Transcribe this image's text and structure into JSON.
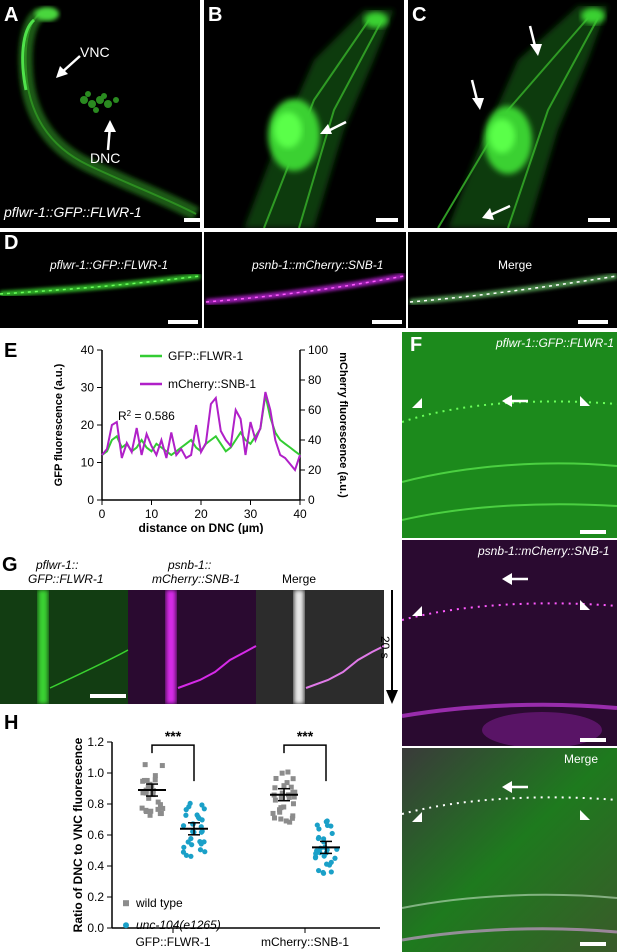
{
  "panels": {
    "A": {
      "letter": "A",
      "labels": {
        "vnc": "VNC",
        "dnc": "DNC",
        "construct": "pflwr-1::GFP::FLWR-1"
      }
    },
    "B": {
      "letter": "B"
    },
    "C": {
      "letter": "C"
    },
    "D": {
      "letter": "D",
      "labels": [
        "pflwr-1::GFP::FLWR-1",
        "psnb-1::mCherry::SNB-1",
        "Merge"
      ]
    },
    "E": {
      "letter": "E"
    },
    "F": {
      "letter": "F",
      "labels": [
        "pflwr-1::GFP::FLWR-1",
        "psnb-1::mCherry::SNB-1",
        "Merge"
      ]
    },
    "G": {
      "letter": "G",
      "labels": {
        "gfp_line1": "pflwr-1::",
        "gfp_line2": "GFP::FLWR-1",
        "mch_line1": "psnb-1::",
        "mch_line2": "mCherry::SNB-1",
        "merge": "Merge",
        "time": "20 s"
      }
    },
    "H": {
      "letter": "H"
    }
  },
  "colors": {
    "gfp": "#33cc33",
    "mcherry": "#b020c8",
    "wild_type": "#8c8c8c",
    "mutant": "#1aa0c8"
  },
  "chart_data": [
    {
      "type": "line",
      "panel": "E",
      "xlabel": "distance on DNC (µm)",
      "ylabel_left": "GFP fluorescence (a.u.)",
      "ylabel_right": "mCherry fluorescence (a.u.)",
      "xlim": [
        0,
        40
      ],
      "ylim_left": [
        0,
        40
      ],
      "ylim_right": [
        0,
        100
      ],
      "xticks": [
        0,
        10,
        20,
        30,
        40
      ],
      "yticks_left": [
        0,
        10,
        20,
        30,
        40
      ],
      "yticks_right": [
        0,
        20,
        40,
        60,
        80,
        100
      ],
      "annotation": {
        "r2_prefix": "R",
        "r2_sup": "2",
        "r2_rest": " = 0.586"
      },
      "legend_placement": "top",
      "series": [
        {
          "name": "GFP::FLWR-1",
          "axis": "left",
          "color": "#33cc33",
          "x": [
            0,
            1,
            2,
            3,
            4,
            5,
            6,
            7,
            8,
            9,
            10,
            11,
            12,
            13,
            14,
            15,
            16,
            17,
            18,
            19,
            20,
            21,
            22,
            23,
            24,
            25,
            26,
            27,
            28,
            29,
            30,
            31,
            32,
            33,
            34,
            35,
            36,
            37,
            38,
            39,
            40
          ],
          "y": [
            12,
            13,
            16,
            17,
            14,
            15,
            13,
            14,
            16,
            14,
            13,
            15,
            14,
            13,
            12,
            13,
            14,
            15,
            16,
            14,
            13,
            15,
            16,
            17,
            15,
            13,
            14,
            16,
            18,
            16,
            15,
            17,
            19,
            28,
            22,
            18,
            16,
            15,
            14,
            13,
            12
          ]
        },
        {
          "name": "mCherry::SNB-1",
          "axis": "right",
          "color": "#b020c8",
          "x": [
            0,
            1,
            2,
            3,
            4,
            5,
            6,
            7,
            8,
            9,
            10,
            11,
            12,
            13,
            14,
            15,
            16,
            17,
            18,
            19,
            20,
            21,
            22,
            23,
            24,
            25,
            26,
            27,
            28,
            29,
            30,
            31,
            32,
            33,
            34,
            35,
            36,
            37,
            38,
            39,
            40
          ],
          "y": [
            30,
            34,
            50,
            52,
            28,
            38,
            32,
            48,
            30,
            44,
            36,
            30,
            40,
            28,
            45,
            30,
            34,
            28,
            30,
            50,
            32,
            38,
            64,
            68,
            46,
            40,
            36,
            60,
            54,
            30,
            52,
            40,
            48,
            72,
            60,
            40,
            30,
            28,
            24,
            20,
            30
          ]
        }
      ]
    },
    {
      "type": "scatter",
      "panel": "H",
      "ylabel": "Ratio of DNC to VNC fluorescence",
      "categories": [
        "GFP::FLWR-1",
        "mCherry::SNB-1"
      ],
      "ylim": [
        0,
        1.2
      ],
      "yticks": [
        0.0,
        0.2,
        0.4,
        0.6,
        0.8,
        1.0,
        1.2
      ],
      "significance": [
        "***",
        "***"
      ],
      "legend_placement": "bottom-left",
      "series": [
        {
          "name": "wild type",
          "marker": "square",
          "color": "#8c8c8c",
          "means": [
            0.89,
            0.86
          ]
        },
        {
          "name": "unc-104(e1265)",
          "marker": "circle",
          "color": "#1aa0c8",
          "means": [
            0.64,
            0.52
          ]
        }
      ]
    }
  ]
}
